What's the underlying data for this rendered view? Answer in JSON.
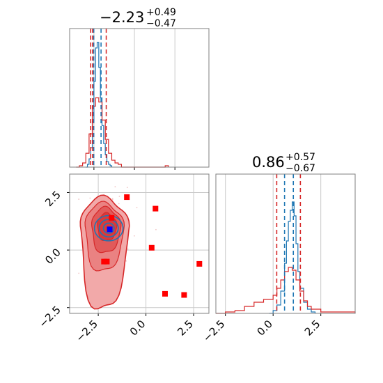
{
  "colors": {
    "blue": "#1f77b4",
    "red": "#d62728",
    "red_fill": "#f2a9a9",
    "red_mid": "#e15a5a",
    "marker_red": "#ff0000",
    "marker_blue": "#0000ff",
    "grid": "#c9c9c9"
  },
  "titles": {
    "p1": {
      "main": "−2.23",
      "plus": "+0.49",
      "minus": "−0.47"
    },
    "p2": {
      "main": "0.86",
      "plus": "+0.57",
      "minus": "−0.67"
    }
  },
  "chart_data": [
    {
      "type": "area",
      "panel": "marginal-parameter-1",
      "xlim": [
        -4.0,
        4.6
      ],
      "grid": true,
      "x_ticks": [
        -2.5,
        0.0,
        2.5
      ],
      "series": [
        {
          "color": "blue",
          "x": [
            -3.0,
            -2.9,
            -2.8,
            -2.7,
            -2.6,
            -2.5,
            -2.4,
            -2.3,
            -2.2,
            -2.1,
            -2.0,
            -1.9,
            -1.8,
            -1.7,
            -1.6,
            -1.5,
            -1.4
          ],
          "values": [
            0.0,
            0.02,
            0.06,
            0.14,
            0.33,
            0.62,
            0.86,
            0.9,
            0.72,
            0.5,
            0.3,
            0.17,
            0.09,
            0.04,
            0.02,
            0.01,
            0.0
          ]
        },
        {
          "color": "red",
          "x": [
            -3.6,
            -3.4,
            -3.2,
            -3.0,
            -2.8,
            -2.6,
            -2.4,
            -2.2,
            -2.0,
            -1.8,
            -1.6,
            -1.4,
            -1.2,
            -1.0,
            -0.8,
            1.9,
            2.1
          ],
          "values": [
            0.0,
            0.01,
            0.03,
            0.1,
            0.24,
            0.44,
            0.5,
            0.47,
            0.34,
            0.2,
            0.1,
            0.05,
            0.03,
            0.02,
            0.0,
            0.01,
            0.0
          ]
        }
      ],
      "quantile_lines": {
        "blue": [
          -2.06,
          -2.51
        ],
        "red": [
          -2.7,
          -1.74,
          -2.58
        ]
      }
    },
    {
      "type": "area",
      "panel": "marginal-parameter-2",
      "xlim": [
        -3.0,
        4.3
      ],
      "grid": true,
      "x_ticks": [
        -2.5,
        0.0,
        2.5
      ],
      "series": [
        {
          "color": "blue",
          "x": [
            -0.2,
            0.0,
            0.2,
            0.4,
            0.6,
            0.7,
            0.8,
            0.9,
            1.0,
            1.1,
            1.2,
            1.3,
            1.4,
            1.6,
            1.8,
            2.0,
            2.2
          ],
          "values": [
            0.0,
            0.02,
            0.06,
            0.16,
            0.36,
            0.52,
            0.66,
            0.74,
            0.8,
            0.7,
            0.5,
            0.3,
            0.18,
            0.08,
            0.03,
            0.01,
            0.0
          ]
        },
        {
          "color": "red",
          "x": [
            -3.0,
            -2.5,
            -2.0,
            -1.5,
            -1.0,
            -0.5,
            0.0,
            0.2,
            0.4,
            0.6,
            0.8,
            1.0,
            1.2,
            1.4,
            1.6,
            1.8,
            2.0,
            2.5,
            3.0,
            4.3
          ],
          "values": [
            0.0,
            0.01,
            0.02,
            0.05,
            0.08,
            0.1,
            0.13,
            0.18,
            0.24,
            0.3,
            0.33,
            0.31,
            0.24,
            0.16,
            0.09,
            0.05,
            0.03,
            0.01,
            0.01,
            0.0
          ]
        }
      ],
      "quantile_lines": {
        "blue": [
          0.6,
          1.06
        ],
        "red": [
          0.19,
          1.43
        ]
      }
    },
    {
      "type": "scatter",
      "panel": "joint-density",
      "xlim": [
        -4.0,
        3.3
      ],
      "ylim": [
        -2.75,
        3.3
      ],
      "grid": true,
      "x_ticks": [
        -2.5,
        0.0,
        2.5
      ],
      "y_ticks": [
        -2.5,
        0.0,
        2.5
      ],
      "red_markers": [
        {
          "x": -1.0,
          "y": 2.3
        },
        {
          "x": 0.5,
          "y": 1.8
        },
        {
          "x": -1.8,
          "y": 1.4
        },
        {
          "x": 0.3,
          "y": 0.1
        },
        {
          "x": -2.2,
          "y": -0.5
        },
        {
          "x": -2.05,
          "y": -0.5
        },
        {
          "x": 1.0,
          "y": -1.9
        },
        {
          "x": 2.0,
          "y": -1.95
        },
        {
          "x": 2.8,
          "y": -0.6
        }
      ],
      "blue_marker": {
        "x": -1.9,
        "y": 0.9
      }
    }
  ]
}
